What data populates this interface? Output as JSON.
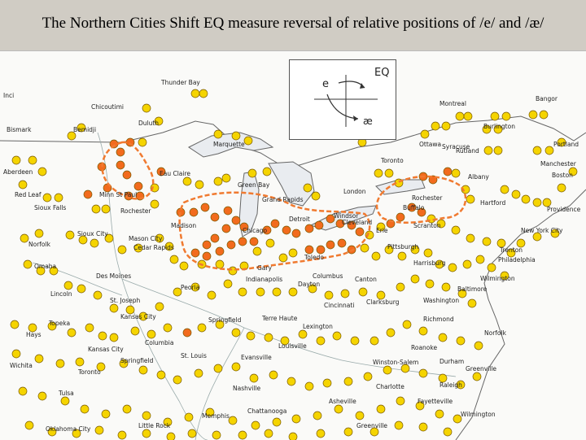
{
  "title": "The Northern Cities Shift EQ measure reversal of relative positions of /e/ and /æ/",
  "legend": {
    "label": "EQ",
    "upper_vowel": "e",
    "lower_vowel": "æ"
  },
  "colors": {
    "normal": "#f5d400",
    "shifted": "#f26b1d",
    "dot_stroke": "#7a5a00",
    "isogloss": "#f07a30"
  },
  "cities": [
    "Thunder Bay",
    "Bangor",
    "Inci",
    "Montreal",
    "Chicoutimi",
    "Duluth",
    "Burlington",
    "Bismark",
    "Bemidji",
    "Marquette",
    "Ottawa",
    "Rutland",
    "Portland",
    "Toronto",
    "Manchester",
    "Aberdeen",
    "Eau Claire",
    "Green Bay",
    "Syracuse",
    "Albany",
    "Boston",
    "Red Leaf",
    "Minn St Paul",
    "Grand Rapids",
    "Rochester",
    "Hartford",
    "London",
    "Providence",
    "Sioux Falls",
    "Rochester",
    "Detroit",
    "Windsor",
    "Buffalo",
    "Sioux City",
    "Mason City",
    "Madison",
    "Chicago",
    "Cleveland",
    "Scranton",
    "Erie",
    "New York City",
    "Norfolk",
    "Cedar Rapids",
    "Toledo",
    "Pittsburgh",
    "Trenton",
    "Omaha",
    "Gary",
    "Harrisburg",
    "Philadelphia",
    "Des Moines",
    "Indianapolis",
    "Columbus",
    "Canton",
    "Wilmington",
    "Lincoln",
    "Peoria",
    "Dayton",
    "Baltimore",
    "St. Joseph",
    "Cincinnati",
    "Clarksburg",
    "Washington",
    "Kansas City",
    "Topeka",
    "Springfield",
    "Terre Haute",
    "Richmond",
    "Hays",
    "Columbia",
    "Lexington",
    "Norfolk",
    "Kansas City",
    "Louisville",
    "Roanoke",
    "St. Louis",
    "Springfield",
    "Evansville",
    "Winston-Salem",
    "Durham",
    "Wichita",
    "Toronto",
    "Greenville",
    "Nashville",
    "Charlotte",
    "Raleigh",
    "Tulsa",
    "Asheville",
    "Fayetteville",
    "Memphis",
    "Chattanooga",
    "Wilmington",
    "Oklahoma City",
    "Little Rock",
    "Greenville"
  ]
}
